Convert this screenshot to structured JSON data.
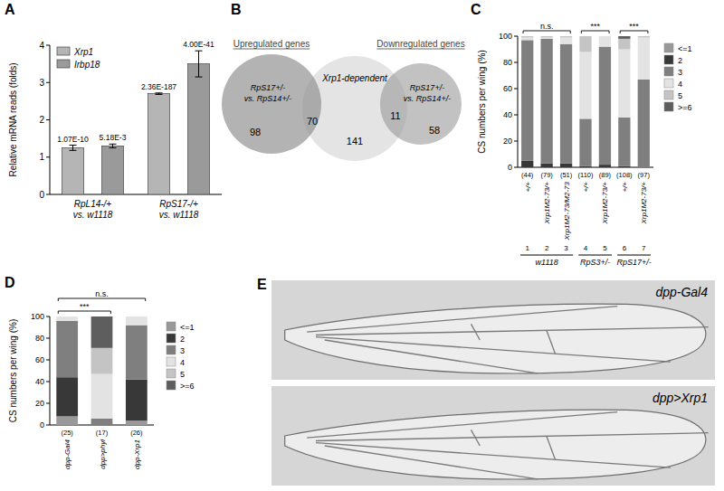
{
  "chart_data": [
    {
      "panel": "A",
      "type": "bar",
      "categories": [
        "RpL14-/+ vs. w1118",
        "RpS17-/+ vs. w1118"
      ],
      "series": [
        {
          "name": "Xrp1",
          "color": "#b5b5b5",
          "values": [
            1.25,
            2.7
          ],
          "errors": [
            0.07,
            0.02
          ],
          "p_values": [
            "1.07E-10",
            "2.36E-187"
          ]
        },
        {
          "name": "Irbp18",
          "color": "#9a9a9a",
          "values": [
            1.3,
            3.5
          ],
          "errors": [
            0.05,
            0.35
          ],
          "p_values": [
            "5.18E-3",
            "4.00E-41"
          ]
        }
      ],
      "y_label": "Relative mRNA reads (folds)",
      "ylim": [
        0,
        4
      ],
      "yticks": [
        0,
        1,
        2,
        3,
        4
      ],
      "legend": "top-left",
      "grid": false
    },
    {
      "panel": "C",
      "type": "bar",
      "stacked": true,
      "categories": [
        "+/+",
        "Xrp1M2-73/+",
        "Xrp1M2-73/M2-73",
        "+/+",
        "Xrp1M2-73/+",
        "+/+",
        "Xrp1M2-73/+"
      ],
      "category_numbers": [
        1,
        2,
        3,
        4,
        5,
        6,
        7
      ],
      "n_labels": [
        "(44)",
        "(79)",
        "(51)",
        "(110)",
        "(89)",
        "(108)",
        "(97)"
      ],
      "groups": [
        {
          "label": "w1118",
          "span": [
            0,
            2
          ]
        },
        {
          "label": "RpS3+/-",
          "span": [
            3,
            4
          ]
        },
        {
          "label": "RpS17+/-",
          "span": [
            5,
            6
          ]
        }
      ],
      "annotations": [
        {
          "text": "n.s.",
          "span": [
            0,
            2
          ]
        },
        {
          "text": "***",
          "span": [
            3,
            4
          ]
        },
        {
          "text": "***",
          "span": [
            5,
            6
          ]
        }
      ],
      "series": [
        {
          "name": "<=1",
          "color": "#999999",
          "values": [
            0,
            0,
            0,
            0,
            0,
            0,
            0
          ]
        },
        {
          "name": "2",
          "color": "#383838",
          "values": [
            5,
            3,
            3,
            1,
            2,
            1,
            0
          ]
        },
        {
          "name": "3",
          "color": "#7f7f7f",
          "values": [
            92,
            95,
            91,
            36,
            90,
            37,
            67
          ]
        },
        {
          "name": "4",
          "color": "#e3e3e3",
          "values": [
            2,
            1,
            5,
            51,
            8,
            52,
            32
          ]
        },
        {
          "name": "5",
          "color": "#c4c4c4",
          "values": [
            1,
            1,
            1,
            12,
            0,
            8,
            1
          ]
        },
        {
          "name": ">=6",
          "color": "#5e5e5e",
          "values": [
            0,
            0,
            0,
            0,
            0,
            2,
            0
          ]
        }
      ],
      "y_label": "CS numbers per wing (%)",
      "ylim": [
        0,
        100
      ],
      "yticks": [
        0,
        20,
        40,
        60,
        80,
        100
      ],
      "legend": "right",
      "grid": false
    },
    {
      "panel": "D",
      "type": "bar",
      "stacked": true,
      "categories": [
        "dpp-Gal4",
        "dpp>phyl",
        "dpp-Xrp1"
      ],
      "n_labels": [
        "(25)",
        "(17)",
        "(26)"
      ],
      "annotations": [
        {
          "text": "***",
          "span": [
            0,
            1
          ]
        },
        {
          "text": "n.s.",
          "span": [
            0,
            2
          ]
        }
      ],
      "series": [
        {
          "name": "<=1",
          "color": "#999999",
          "values": [
            8,
            0,
            4
          ]
        },
        {
          "name": "2",
          "color": "#383838",
          "values": [
            36,
            0,
            38
          ]
        },
        {
          "name": "3",
          "color": "#7f7f7f",
          "values": [
            52,
            6,
            50
          ]
        },
        {
          "name": "4",
          "color": "#e3e3e3",
          "values": [
            4,
            41,
            8
          ]
        },
        {
          "name": "5",
          "color": "#c4c4c4",
          "values": [
            0,
            24,
            0
          ]
        },
        {
          "name": ">=6",
          "color": "#5e5e5e",
          "values": [
            0,
            29,
            0
          ]
        }
      ],
      "y_label": "CS numbers per wing (%)",
      "ylim": [
        0,
        100
      ],
      "yticks": [
        0,
        20,
        40,
        60,
        80,
        100
      ],
      "legend": "right",
      "grid": false
    }
  ],
  "venn": {
    "panel": "B",
    "up_title": "Upregulated genes",
    "down_title": "Downregulated genes",
    "up_set": "RpS17+/- vs. RpS14+/-",
    "middle_set": "Xrp1-dependent",
    "down_set": "RpS17+/- vs. RpS14+/-",
    "counts": {
      "up_only": 98,
      "up_and_xrp1": 70,
      "xrp1_only": 141,
      "down_and_xrp1": 11,
      "down_only": 58
    }
  },
  "wing_images": {
    "panel": "E",
    "labels": [
      "dpp-Gal4",
      "dpp>Xrp1"
    ]
  }
}
